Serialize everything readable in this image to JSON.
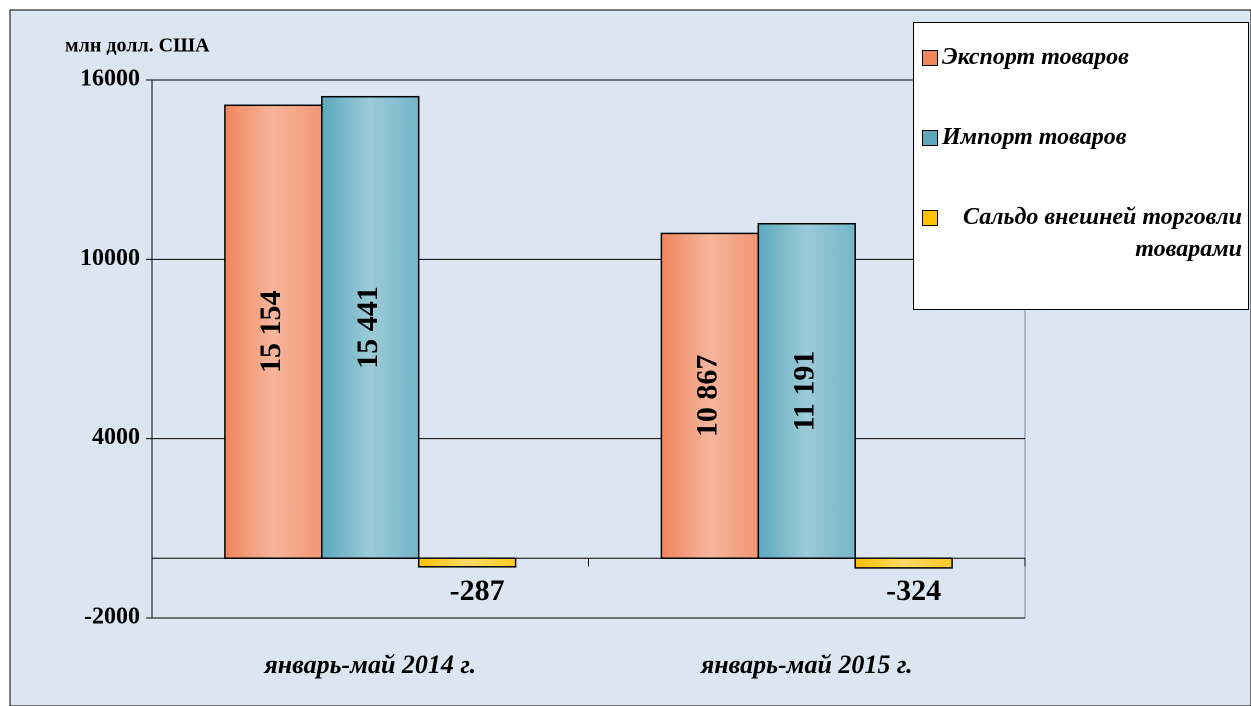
{
  "chart_data": {
    "type": "bar",
    "y_axis_label": "млн долл. США",
    "categories": [
      "январь-май 2014 г.",
      "январь-май 2015 г."
    ],
    "series": [
      {
        "name": "Экспорт товаров",
        "color": "#f0845a",
        "values": [
          15154,
          10867
        ],
        "value_labels": [
          "15 154",
          "10 867"
        ]
      },
      {
        "name": "Импорт товаров",
        "color": "#5aa8bd",
        "values": [
          15441,
          11191
        ],
        "value_labels": [
          "15 441",
          "11 191"
        ]
      },
      {
        "name": "Сальдо внешней торговли товарами",
        "color": "#ffc000",
        "values": [
          -287,
          -324
        ],
        "value_labels": [
          "-287",
          "-324"
        ]
      }
    ],
    "ylim": [
      -2000,
      16000
    ],
    "yticks": [
      -2000,
      4000,
      10000,
      16000
    ],
    "grid": true,
    "legend": "right"
  }
}
